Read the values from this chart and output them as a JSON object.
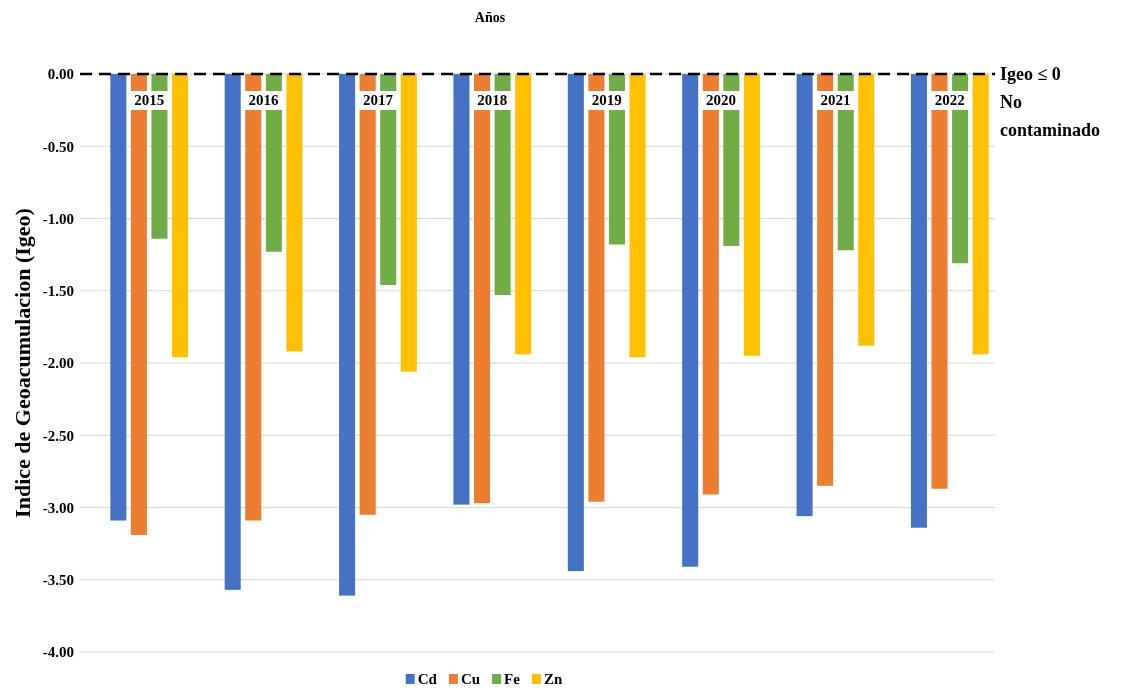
{
  "chart_data": {
    "type": "bar",
    "xlabel": "Años",
    "ylabel": "Indice de Geoacumulacion (Igeo)",
    "categories": [
      "2015",
      "2016",
      "2017",
      "2018",
      "2019",
      "2020",
      "2021",
      "2022"
    ],
    "series": [
      {
        "name": "Cd",
        "color": "#4472c4",
        "values": [
          -3.09,
          -3.57,
          -3.61,
          -2.98,
          -3.44,
          -3.41,
          -3.06,
          -3.14
        ]
      },
      {
        "name": "Cu",
        "color": "#ed7d31",
        "values": [
          -3.19,
          -3.09,
          -3.05,
          -2.97,
          -2.96,
          -2.91,
          -2.85,
          -2.87
        ]
      },
      {
        "name": "Fe",
        "color": "#70ad47",
        "values": [
          -1.14,
          -1.23,
          -1.46,
          -1.53,
          -1.18,
          -1.19,
          -1.22,
          -1.31
        ]
      },
      {
        "name": "Zn",
        "color": "#ffc000",
        "values": [
          -1.96,
          -1.92,
          -2.06,
          -1.94,
          -1.96,
          -1.95,
          -1.88,
          -1.94
        ]
      }
    ],
    "ylim": [
      -4,
      0
    ],
    "yticks": [
      {
        "value": -4,
        "label": "-4.00"
      },
      {
        "value": -3.5,
        "label": "-3.50"
      },
      {
        "value": -3,
        "label": "-3.00"
      },
      {
        "value": -2.5,
        "label": "-2.50"
      },
      {
        "value": -2,
        "label": "-2.00"
      },
      {
        "value": -1.5,
        "label": "-1.50"
      },
      {
        "value": -1,
        "label": "-1.00"
      },
      {
        "value": -0.5,
        "label": "-0.50"
      },
      {
        "value": 0,
        "label": "0.00"
      }
    ],
    "grid": "y",
    "legend": "bottom",
    "ref_lines": [
      {
        "axis": "y",
        "value": 0,
        "label": "Igeo ≤ 0 No contaminado",
        "color": "#000000",
        "line_style": "dashed"
      }
    ]
  }
}
